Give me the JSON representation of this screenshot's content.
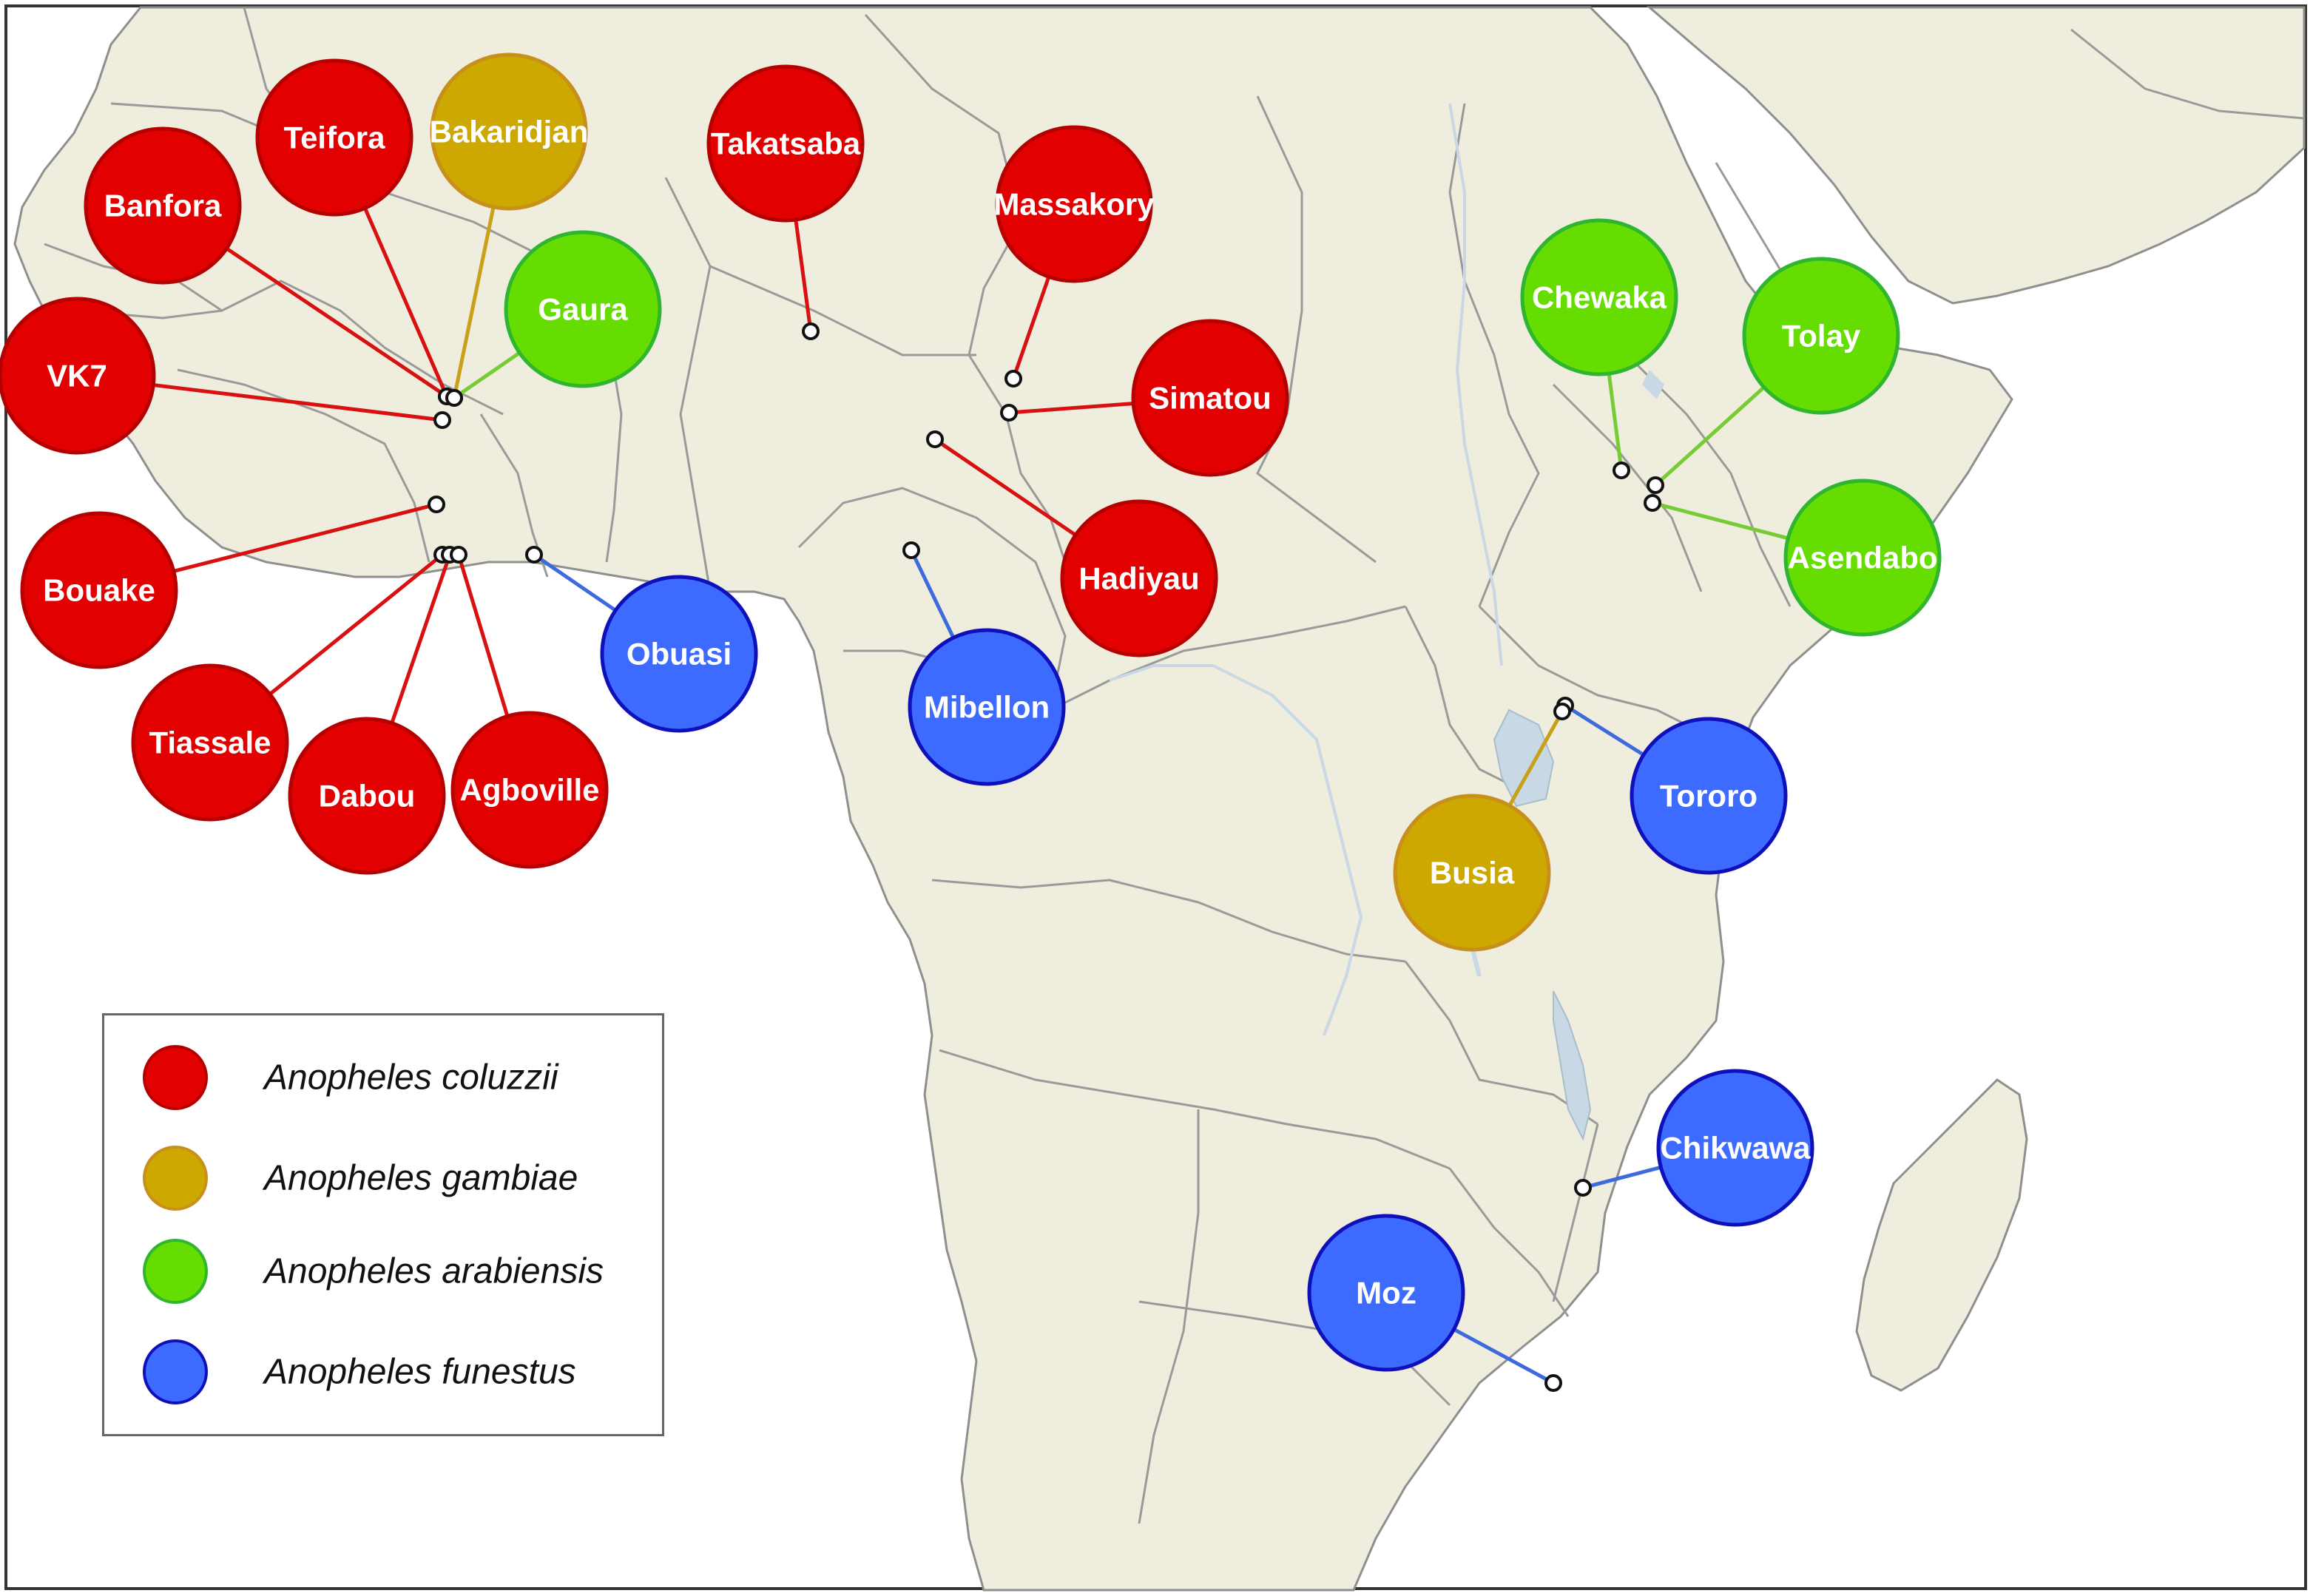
{
  "colors": {
    "ocean": "#ffffff",
    "land": "#efeddd",
    "border": "#8f8f8f",
    "water": "#c8d8e4",
    "marker": "#ffffff"
  },
  "species": {
    "coluzzii": {
      "name": "Anopheles coluzzii",
      "fill": "#e30000",
      "stroke": "#b40000",
      "line": "#d81010"
    },
    "gambiae": {
      "name": "Anopheles gambiae",
      "fill": "#cca800",
      "stroke": "#c7901c",
      "line": "#c9a018"
    },
    "arabiensis": {
      "name": "Anopheles arabiensis",
      "fill": "#66dd00",
      "stroke": "#2fb52f",
      "line": "#77cc33"
    },
    "funestus": {
      "name": "Anopheles funestus",
      "fill": "#3d6bff",
      "stroke": "#1010bb",
      "line": "#3d6bdd"
    }
  },
  "legend": {
    "items": [
      {
        "key": "coluzzii",
        "label": "Anopheles coluzzii"
      },
      {
        "key": "gambiae",
        "label": "Anopheles gambiae"
      },
      {
        "key": "arabiensis",
        "label": "Anopheles arabiensis"
      },
      {
        "key": "funestus",
        "label": "Anopheles funestus"
      }
    ]
  },
  "sites": [
    {
      "name": "Teifora",
      "species": "coluzzii"
    },
    {
      "name": "Bakaridjan",
      "species": "gambiae"
    },
    {
      "name": "Banfora",
      "species": "coluzzii"
    },
    {
      "name": "Gaura",
      "species": "arabiensis"
    },
    {
      "name": "VK7",
      "species": "coluzzii"
    },
    {
      "name": "Bouake",
      "species": "coluzzii"
    },
    {
      "name": "Tiassale",
      "species": "coluzzii"
    },
    {
      "name": "Dabou",
      "species": "coluzzii"
    },
    {
      "name": "Agboville",
      "species": "coluzzii"
    },
    {
      "name": "Obuasi",
      "species": "funestus"
    },
    {
      "name": "Takatsaba",
      "species": "coluzzii"
    },
    {
      "name": "Massakory",
      "species": "coluzzii"
    },
    {
      "name": "Simatou",
      "species": "coluzzii"
    },
    {
      "name": "Hadiyau",
      "species": "coluzzii"
    },
    {
      "name": "Mibellon",
      "species": "funestus"
    },
    {
      "name": "Chewaka",
      "species": "arabiensis"
    },
    {
      "name": "Tolay",
      "species": "arabiensis"
    },
    {
      "name": "Asendabo",
      "species": "arabiensis"
    },
    {
      "name": "Tororo",
      "species": "funestus"
    },
    {
      "name": "Busia",
      "species": "gambiae"
    },
    {
      "name": "Chikwawa",
      "species": "funestus"
    },
    {
      "name": "Moz",
      "species": "funestus"
    }
  ]
}
